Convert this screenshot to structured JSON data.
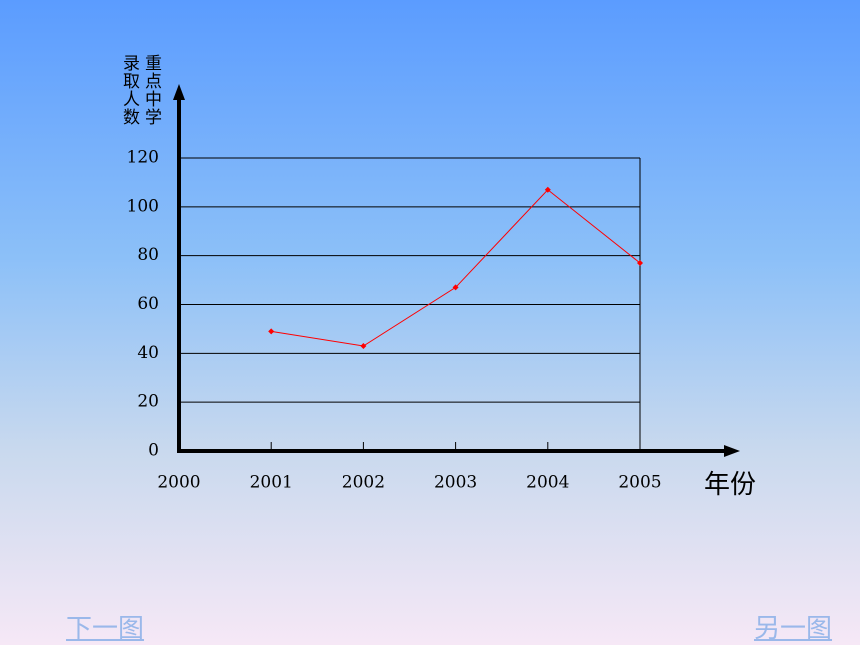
{
  "chart_data": {
    "type": "line",
    "y_label": "重点中学录取人数",
    "x_label": "年份",
    "x": [
      2001,
      2002,
      2003,
      2004,
      2005
    ],
    "series": [
      {
        "color": "#ff0000",
        "values": [
          49,
          43,
          67,
          107,
          77
        ]
      }
    ],
    "xlim": [
      2000,
      2005
    ],
    "xticks": [
      2000,
      2001,
      2002,
      2003,
      2004,
      2005
    ],
    "ylim": [
      0,
      120
    ],
    "yticks": [
      0,
      20,
      40,
      60,
      80,
      100,
      120
    ],
    "grid": true
  },
  "navigation": {
    "next": "下一图",
    "other": "另一图"
  }
}
